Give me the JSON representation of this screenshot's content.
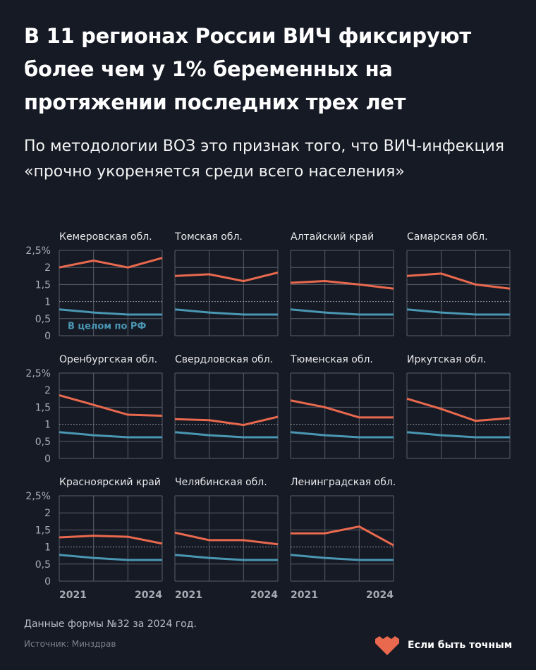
{
  "title": "В 11 регионах России ВИЧ фиксируют более чем у 1% беременных на протяжении последних трех лет",
  "subtitle": "По методологии ВОЗ это признак того, что ВИЧ-инфекция «прочно укореняется среди всего населения»",
  "chart_data": {
    "type": "line",
    "x": [
      2021,
      2022,
      2023,
      2024
    ],
    "x_tick_labels": [
      "2021",
      "2024"
    ],
    "y_tick_labels": [
      "0",
      "0,5",
      "1",
      "1,5",
      "2",
      "2,5%"
    ],
    "ylim": [
      0,
      2.5
    ],
    "threshold": 1,
    "grid": true,
    "reference_series": {
      "name": "В целом по РФ",
      "values": [
        0.77,
        0.68,
        0.62,
        0.62
      ]
    },
    "panels": [
      {
        "name": "Кемеровская обл.",
        "values": [
          2.0,
          2.2,
          2.0,
          2.28
        ]
      },
      {
        "name": "Томская обл.",
        "values": [
          1.75,
          1.8,
          1.6,
          1.85
        ]
      },
      {
        "name": "Алтайский край",
        "values": [
          1.55,
          1.6,
          1.5,
          1.38
        ]
      },
      {
        "name": "Самарская обл.",
        "values": [
          1.75,
          1.82,
          1.5,
          1.38
        ]
      },
      {
        "name": "Оренбургская обл.",
        "values": [
          1.85,
          1.57,
          1.28,
          1.25
        ]
      },
      {
        "name": "Свердловская обл.",
        "values": [
          1.15,
          1.12,
          0.98,
          1.22
        ]
      },
      {
        "name": "Тюменская обл.",
        "values": [
          1.7,
          1.5,
          1.2,
          1.2
        ]
      },
      {
        "name": "Иркутская обл.",
        "values": [
          1.75,
          1.45,
          1.1,
          1.18
        ]
      },
      {
        "name": "Красноярский край",
        "values": [
          1.28,
          1.33,
          1.3,
          1.1
        ]
      },
      {
        "name": "Челябинская обл.",
        "values": [
          1.42,
          1.2,
          1.2,
          1.08
        ]
      },
      {
        "name": "Ленинградская обл.",
        "values": [
          1.4,
          1.4,
          1.6,
          1.05
        ]
      }
    ],
    "colors": {
      "region": "#e9694e",
      "reference": "#4a97b3",
      "grid": "#5a5e69",
      "background": "#161a25"
    }
  },
  "footer": {
    "note": "Данные формы №32 за 2024 год.",
    "source": "Источник: Минздрав",
    "brand": "Если быть точным"
  }
}
